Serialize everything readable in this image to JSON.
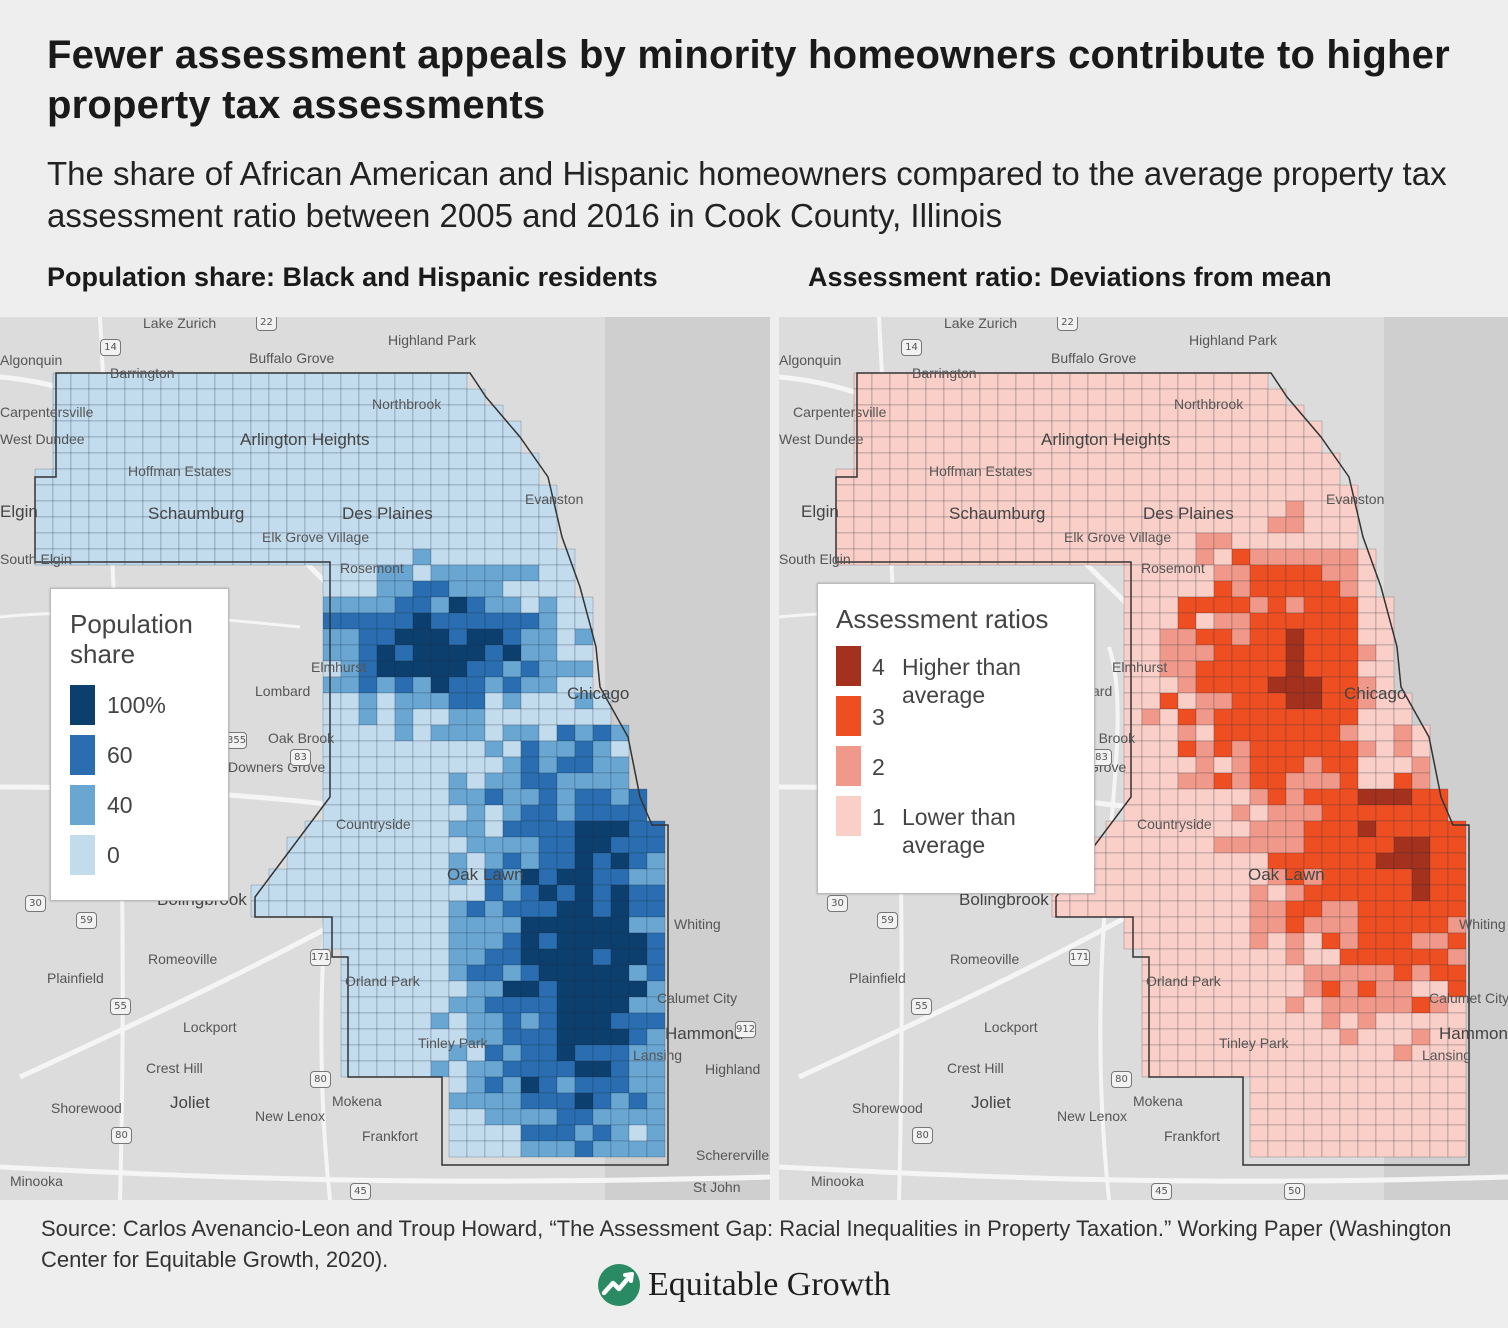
{
  "title": "Fewer assessment appeals by minority homeowners contribute to higher property tax assessments",
  "subtitle": "The share of African American and Hispanic homeowners compared to the average property tax assessment ratio between 2005 and 2016 in Cook County, Illinois",
  "left_panel": {
    "heading": "Population share: Black and Hispanic residents",
    "legend": {
      "title": "Population share",
      "items": [
        {
          "label": "100%",
          "color": "#0d3f6e"
        },
        {
          "label": "60",
          "color": "#2a6db0"
        },
        {
          "label": "40",
          "color": "#6aa6d2"
        },
        {
          "label": "0",
          "color": "#c2dcee"
        }
      ]
    }
  },
  "right_panel": {
    "heading": "Assessment ratio: Deviations from mean",
    "legend": {
      "title": "Assessment ratios",
      "items": [
        {
          "value": "4",
          "label": "Higher than average",
          "color": "#a3311d"
        },
        {
          "value": "3",
          "label": "",
          "color": "#ee4f22"
        },
        {
          "value": "2",
          "label": "",
          "color": "#f0998a"
        },
        {
          "value": "1",
          "label": "Lower than average",
          "color": "#f9cfc8"
        }
      ]
    }
  },
  "map_labels": {
    "lake_zurich": "Lake Zurich",
    "highland_park": "Highland Park",
    "buffalo_grove": "Buffalo Grove",
    "barrington": "Barrington",
    "algonquin": "Algonquin",
    "carpentersville": "Carpentersville",
    "west_dundee": "West Dundee",
    "northbrook": "Northbrook",
    "arlington_heights": "Arlington Heights",
    "hoffman_estates": "Hoffman Estates",
    "elgin": "Elgin",
    "schaumburg": "Schaumburg",
    "des_plaines": "Des Plaines",
    "evanston": "Evanston",
    "south_elgin": "South Elgin",
    "elk_grove_village": "Elk Grove Village",
    "rosemont": "Rosemont",
    "elmhurst": "Elmhurst",
    "chicago": "Chicago",
    "lombard": "Lombard",
    "oak_brook": "Oak Brook",
    "downers_grove": "Downers Grove",
    "countryside": "Countryside",
    "bolingbrook": "Bolingbrook",
    "oak_lawn": "Oak Lawn",
    "whiting": "Whiting",
    "romeoville": "Romeoville",
    "plainfield": "Plainfield",
    "orland_park": "Orland Park",
    "calumet_city": "Calumet City",
    "lockport": "Lockport",
    "hammond": "Hammond",
    "tinley_park": "Tinley Park",
    "crest_hill": "Crest Hill",
    "lansing": "Lansing",
    "highland": "Highland",
    "shorewood": "Shorewood",
    "joliet": "Joliet",
    "mokena": "Mokena",
    "new_lenox": "New Lenox",
    "frankfort": "Frankfort",
    "schererville": "Schererville",
    "minooka": "Minooka",
    "st_john": "St John",
    "route_14": "14",
    "route_22": "22",
    "route_83": "83",
    "route_355": "355",
    "route_30": "30",
    "route_59": "59",
    "route_55": "55",
    "route_80": "80",
    "route_45": "45",
    "route_50": "50",
    "route_171": "171",
    "route_912": "912"
  },
  "source": "Source: Carlos Avenancio-Leon and Troup Howard, “The Assessment Gap: Racial Inequalities in Property Taxation.” Working Paper (Washington Center for Equitable Growth, 2020).",
  "logo_text": "Equitable Growth"
}
